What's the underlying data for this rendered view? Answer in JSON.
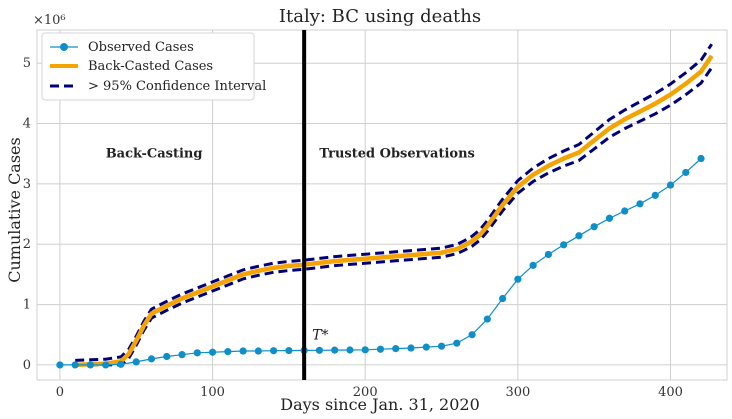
{
  "chart_data": {
    "type": "line",
    "title": "Italy: BC using deaths",
    "xlabel": "Days since Jan. 31, 2020",
    "ylabel": "Cumulative Cases",
    "y_multiplier_label": "×10⁶",
    "xlim": [
      -15,
      437
    ],
    "ylim": [
      -0.25,
      5.55
    ],
    "xticks": [
      0,
      100,
      200,
      300,
      400
    ],
    "yticks": [
      0,
      1,
      2,
      3,
      4,
      5
    ],
    "grid": true,
    "legend_position": "top-left",
    "colors": {
      "observed": "#0f8fc9",
      "backcasted": "#f5a300",
      "ci": "#00007a",
      "tstar": "#000000",
      "grid": "#cfcfcf",
      "axes": "#d8d8d8"
    },
    "series": [
      {
        "name": "Observed Cases",
        "style": "line-marker",
        "x": [
          0,
          10,
          20,
          30,
          40,
          50,
          60,
          70,
          80,
          90,
          100,
          110,
          120,
          130,
          140,
          150,
          160,
          170,
          180,
          190,
          200,
          210,
          220,
          230,
          240,
          250,
          260,
          270,
          280,
          290,
          300,
          310,
          320,
          330,
          340,
          350,
          360,
          370,
          380,
          390,
          400,
          410,
          420
        ],
        "y": [
          0.0,
          0.0,
          0.0,
          0.0,
          0.01,
          0.05,
          0.1,
          0.14,
          0.17,
          0.2,
          0.21,
          0.22,
          0.23,
          0.23,
          0.235,
          0.238,
          0.24,
          0.242,
          0.245,
          0.247,
          0.25,
          0.26,
          0.27,
          0.28,
          0.295,
          0.31,
          0.36,
          0.5,
          0.76,
          1.1,
          1.42,
          1.65,
          1.83,
          1.99,
          2.14,
          2.29,
          2.43,
          2.55,
          2.67,
          2.81,
          2.98,
          3.19,
          3.42
        ]
      },
      {
        "name": "Back-Casted Cases",
        "style": "thick-line",
        "x": [
          10,
          20,
          30,
          40,
          45,
          50,
          55,
          60,
          70,
          80,
          90,
          100,
          110,
          120,
          130,
          140,
          150,
          160,
          170,
          180,
          190,
          200,
          210,
          220,
          230,
          240,
          250,
          260,
          265,
          270,
          275,
          280,
          290,
          300,
          310,
          320,
          330,
          340,
          350,
          360,
          370,
          380,
          390,
          400,
          410,
          420,
          427
        ],
        "y": [
          0.0,
          0.01,
          0.02,
          0.06,
          0.18,
          0.4,
          0.65,
          0.85,
          0.98,
          1.1,
          1.2,
          1.3,
          1.4,
          1.5,
          1.56,
          1.61,
          1.64,
          1.66,
          1.69,
          1.72,
          1.74,
          1.76,
          1.78,
          1.8,
          1.82,
          1.84,
          1.86,
          1.92,
          1.98,
          2.05,
          2.15,
          2.3,
          2.65,
          2.95,
          3.15,
          3.3,
          3.42,
          3.52,
          3.72,
          3.92,
          4.07,
          4.2,
          4.33,
          4.48,
          4.66,
          4.86,
          5.12
        ]
      },
      {
        "name": "> 95% Confidence Interval",
        "style": "dashed",
        "bounds": {
          "upper_offset": 0.075,
          "lower_offset": 0.075,
          "upper_growth_after": 260,
          "upper_growth": 0.12
        }
      }
    ],
    "vertical_line": {
      "x": 160,
      "label": "T*"
    },
    "annotations": [
      {
        "text": "Back-Casting",
        "x": 30,
        "y": 3.5
      },
      {
        "text": "Trusted Observations",
        "x": 170,
        "y": 3.5
      }
    ]
  }
}
